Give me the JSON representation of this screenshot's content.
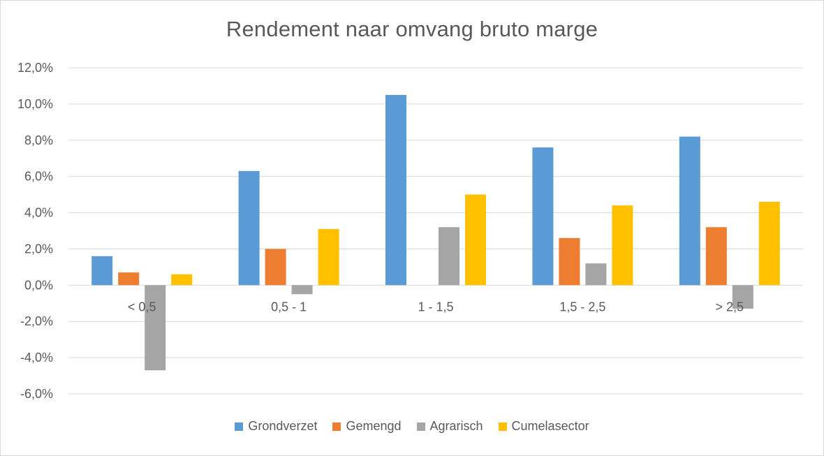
{
  "chart_data": {
    "type": "bar",
    "title": "Rendement naar omvang bruto marge",
    "categories": [
      "< 0,5",
      "0,5 - 1",
      "1 - 1,5",
      "1,5 - 2,5",
      "> 2,5"
    ],
    "series": [
      {
        "name": "Grondverzet",
        "color": "#5b9bd5",
        "values": [
          1.6,
          6.3,
          10.5,
          7.6,
          8.2
        ]
      },
      {
        "name": "Gemengd",
        "color": "#ed7d31",
        "values": [
          0.7,
          2.0,
          0.0,
          2.6,
          3.2
        ]
      },
      {
        "name": "Agrarisch",
        "color": "#a5a5a5",
        "values": [
          -4.7,
          -0.5,
          3.2,
          1.2,
          -1.3
        ]
      },
      {
        "name": "Cumelasector",
        "color": "#ffc000",
        "values": [
          0.6,
          3.1,
          5.0,
          4.4,
          4.6
        ]
      }
    ],
    "yticks": [
      "12,0%",
      "10,0%",
      "8,0%",
      "6,0%",
      "4,0%",
      "2,0%",
      "0,0%",
      "-2,0%",
      "-4,0%",
      "-6,0%"
    ],
    "ylim": [
      -6,
      12
    ],
    "ytick_step": 2,
    "xlabel": "",
    "ylabel": "",
    "grid": true,
    "legend_position": "bottom",
    "gridline_color": "#d9d9d9"
  }
}
